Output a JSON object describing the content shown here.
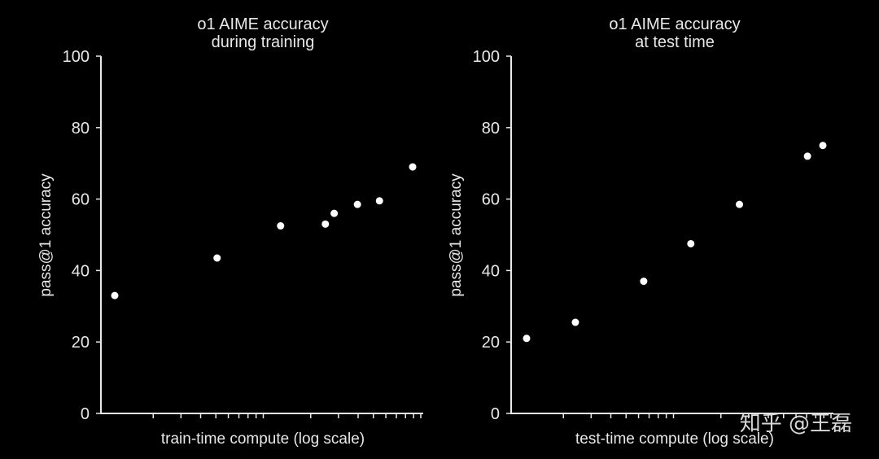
{
  "chart_data": [
    {
      "type": "scatter",
      "title_lines": [
        "o1 AIME accuracy",
        "during training"
      ],
      "xlabel": "train-time compute (log scale)",
      "ylabel": "pass@1 accuracy",
      "ylim": [
        0,
        100
      ],
      "yticks": [
        0,
        20,
        40,
        60,
        80,
        100
      ],
      "xscale": "log",
      "x": [
        1.0,
        3.8,
        8.7,
        15.6,
        17.5,
        23.7,
        31.6,
        48.7
      ],
      "y": [
        33,
        43.5,
        52.5,
        53,
        56,
        58.5,
        59.5,
        69
      ]
    },
    {
      "type": "scatter",
      "title_lines": [
        "o1 AIME accuracy",
        "at test time"
      ],
      "xlabel": "test-time compute (log scale)",
      "ylabel": "pass@1 accuracy",
      "ylim": [
        0,
        100
      ],
      "yticks": [
        0,
        20,
        40,
        60,
        80,
        100
      ],
      "xscale": "log",
      "x": [
        1.0,
        2.05,
        5.6,
        11.2,
        22.9,
        62.3,
        78.1
      ],
      "y": [
        21,
        25.5,
        37,
        47.5,
        58.5,
        72,
        75
      ]
    }
  ],
  "watermark": "知乎 @王磊"
}
